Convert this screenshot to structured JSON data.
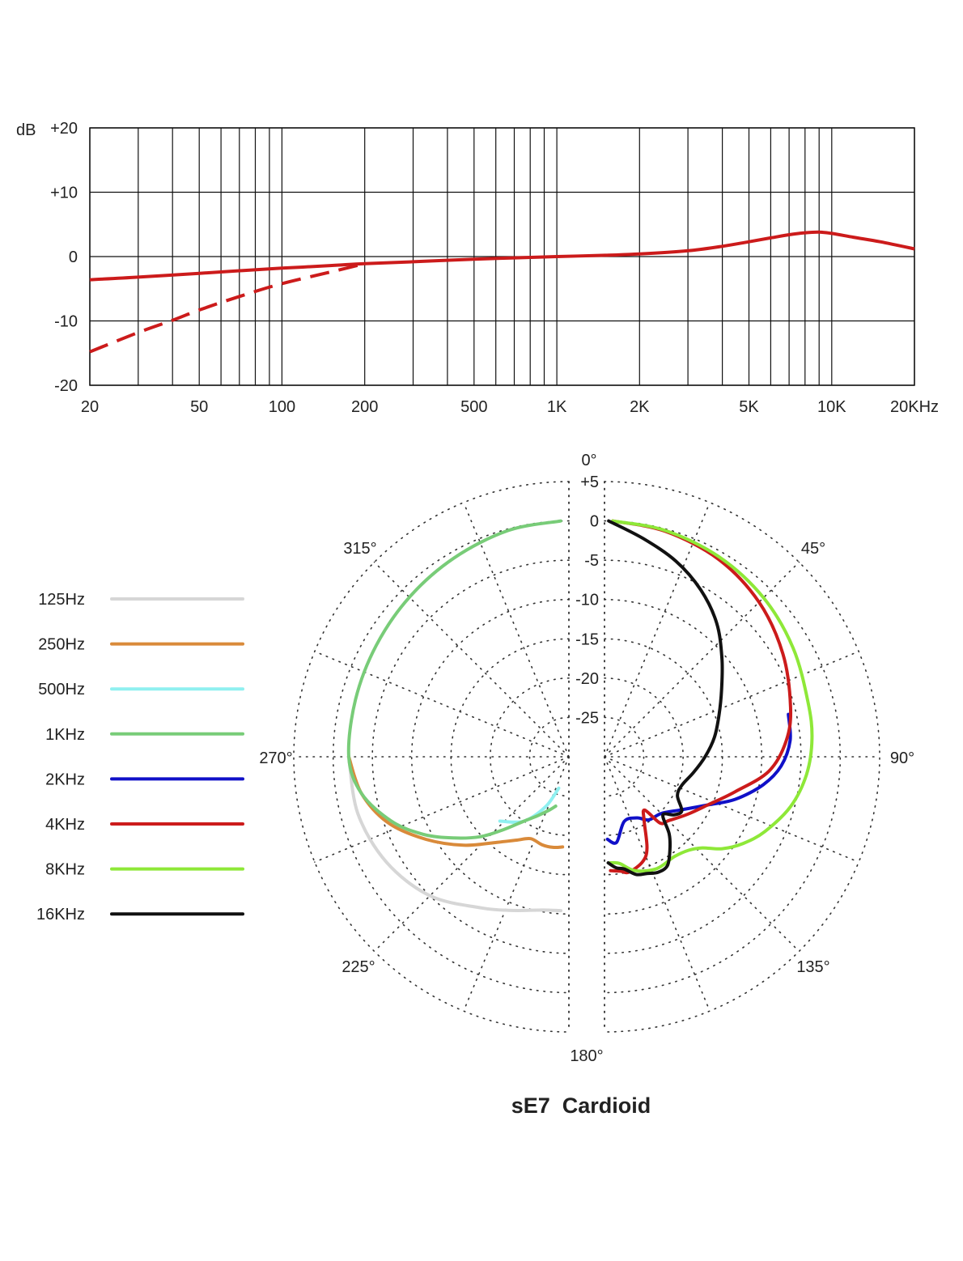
{
  "chart_data": [
    {
      "type": "line",
      "title": "",
      "xlabel": "",
      "ylabel": "dB",
      "x_scale": "log",
      "xlim": [
        20,
        20000
      ],
      "ylim": [
        -20,
        20
      ],
      "grid": true,
      "x_ticks": [
        {
          "value": 20,
          "label": "20"
        },
        {
          "value": 50,
          "label": "50"
        },
        {
          "value": 100,
          "label": "100"
        },
        {
          "value": 200,
          "label": "200"
        },
        {
          "value": 500,
          "label": "500"
        },
        {
          "value": 1000,
          "label": "1K"
        },
        {
          "value": 2000,
          "label": "2K"
        },
        {
          "value": 5000,
          "label": "5K"
        },
        {
          "value": 10000,
          "label": "10K"
        },
        {
          "value": 20000,
          "label": "20KHz"
        }
      ],
      "y_ticks": [
        {
          "value": 20,
          "label": "+20"
        },
        {
          "value": 10,
          "label": "+10"
        },
        {
          "value": 0,
          "label": "0"
        },
        {
          "value": -10,
          "label": "-10"
        },
        {
          "value": -20,
          "label": "-20"
        }
      ],
      "series": [
        {
          "style": "solid",
          "color": "#cc1b1b",
          "x": [
            20,
            30,
            50,
            70,
            100,
            150,
            200,
            300,
            500,
            700,
            1000,
            1500,
            2000,
            3000,
            4000,
            5000,
            6000,
            7000,
            8000,
            9000,
            10000,
            12000,
            15000,
            20000
          ],
          "y": [
            -3.6,
            -3.2,
            -2.6,
            -2.2,
            -1.8,
            -1.4,
            -1.1,
            -0.8,
            -0.4,
            -0.2,
            0,
            0.2,
            0.4,
            0.9,
            1.6,
            2.3,
            2.9,
            3.4,
            3.7,
            3.8,
            3.6,
            3.0,
            2.3,
            1.2
          ]
        },
        {
          "style": "dashed",
          "color": "#cc1b1b",
          "x": [
            20,
            30,
            40,
            50,
            70,
            100,
            150,
            200
          ],
          "y": [
            -14.8,
            -11.8,
            -9.9,
            -8.3,
            -6.2,
            -4.2,
            -2.4,
            -1.1
          ]
        }
      ]
    },
    {
      "type": "polar",
      "title": "sE7  Cardioid",
      "r_range": [
        -30,
        5
      ],
      "r_ticks": [
        {
          "value": 5,
          "label": "+5"
        },
        {
          "value": 0,
          "label": "0"
        },
        {
          "value": -5,
          "label": "-5"
        },
        {
          "value": -10,
          "label": "-10"
        },
        {
          "value": -15,
          "label": "-15"
        },
        {
          "value": -20,
          "label": "-20"
        },
        {
          "value": -25,
          "label": "-25"
        }
      ],
      "angle_labels": [
        {
          "angle": 0,
          "label": "0°"
        },
        {
          "angle": 45,
          "label": "45°"
        },
        {
          "angle": 90,
          "label": "90°"
        },
        {
          "angle": 135,
          "label": "135°"
        },
        {
          "angle": 180,
          "label": "180°"
        },
        {
          "angle": 225,
          "label": "225°"
        },
        {
          "angle": 270,
          "label": "270°"
        },
        {
          "angle": 315,
          "label": "315°"
        }
      ],
      "legend_position": "left",
      "series": [
        {
          "name": "125Hz",
          "color": "#d6d6d6",
          "angles": [
            270,
            255,
            240,
            225,
            210,
            200,
            190,
            183
          ],
          "r": [
            -2.0,
            -2.2,
            -3.2,
            -5.0,
            -7.8,
            -9.2,
            -10.2,
            -10.4
          ]
        },
        {
          "name": "250Hz",
          "color": "#d98a3a",
          "angles": [
            270,
            260,
            250,
            240,
            230,
            220,
            212,
            205,
            197,
            190,
            184
          ],
          "r": [
            -2.0,
            -3.2,
            -5.5,
            -9.0,
            -12.5,
            -15.8,
            -17.5,
            -18.5,
            -18.3,
            -18.3,
            -18.5
          ]
        },
        {
          "name": "500Hz",
          "color": "#8ff0f0",
          "angles": [
            227,
            215,
            205,
            198
          ],
          "r": [
            -18.0,
            -20.0,
            -23.0,
            -25.8
          ]
        },
        {
          "name": "1KHz",
          "color": "#78cc78",
          "angles": [
            358,
            345,
            330,
            315,
            300,
            285,
            270,
            260,
            250,
            242,
            235,
            228,
            222,
            215,
            208,
            200,
            195
          ],
          "r": [
            0,
            -0.2,
            -0.8,
            -1.3,
            -1.7,
            -1.9,
            -2.0,
            -3.2,
            -6.0,
            -9.0,
            -12.0,
            -14.8,
            -17.5,
            -20.0,
            -21.5,
            -22.8,
            -23.5
          ]
        },
        {
          "name": "2KHz",
          "color": "#1010c8",
          "angles": [
            77,
            85,
            93,
            100,
            108,
            115,
            125,
            135,
            145,
            152,
            163,
            172,
            178
          ],
          "r": [
            -6.0,
            -6.3,
            -7.5,
            -9.5,
            -12.5,
            -15.5,
            -18.2,
            -19.8,
            -20.2,
            -21.2,
            -21.4,
            -19.0,
            -19.5
          ]
        },
        {
          "name": "4KHz",
          "color": "#cc1b1b",
          "angles": [
            2,
            15,
            30,
            45,
            60,
            75,
            85,
            95,
            105,
            115,
            125,
            135,
            140,
            143,
            148,
            155,
            160,
            168,
            172,
            177
          ],
          "r": [
            0,
            -0.3,
            -1.0,
            -2.2,
            -3.8,
            -5.5,
            -6.8,
            -9.0,
            -12.8,
            -15.5,
            -17.2,
            -18.5,
            -19.0,
            -21.5,
            -20.5,
            -17.2,
            -15.8,
            -15.0,
            -15.3,
            -15.5
          ]
        },
        {
          "name": "8KHz",
          "color": "#8ee838",
          "angles": [
            2,
            15,
            30,
            45,
            60,
            75,
            85,
            95,
            105,
            115,
            122,
            128,
            133,
            138,
            145,
            155,
            165,
            172,
            177
          ],
          "r": [
            0,
            -0.2,
            -0.7,
            -1.4,
            -2.3,
            -3.2,
            -3.5,
            -4.2,
            -5.5,
            -7.5,
            -9.2,
            -11.0,
            -13.0,
            -14.0,
            -14.5,
            -14.3,
            -15.0,
            -16.3,
            -16.5
          ]
        },
        {
          "name": "16KHz",
          "color": "#111111",
          "angles": [
            1,
            10,
            20,
            30,
            40,
            50,
            60,
            70,
            80,
            90,
            100,
            110,
            118,
            125,
            130,
            135,
            140,
            145,
            150,
            155,
            160,
            165,
            170,
            174,
            178
          ],
          "r": [
            0,
            -1.8,
            -3.5,
            -5.5,
            -7.8,
            -10.5,
            -12.8,
            -14.5,
            -15.8,
            -17.2,
            -18.5,
            -19.5,
            -19.5,
            -18.0,
            -18.5,
            -19.5,
            -17.2,
            -15.5,
            -14.0,
            -13.8,
            -14.2,
            -14.5,
            -15.5,
            -15.8,
            -16.5
          ]
        }
      ]
    }
  ]
}
